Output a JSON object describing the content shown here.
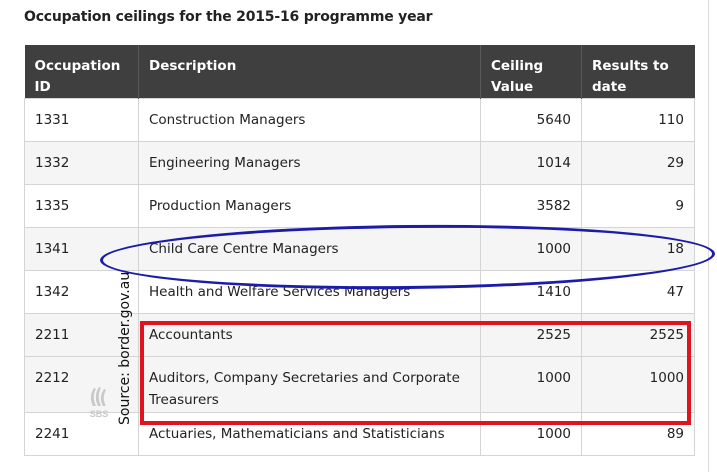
{
  "caption": "Occupation ceilings for the 2015-16 programme year",
  "table": {
    "headers": {
      "id_line1": "Occupation",
      "id_line2": "ID",
      "description": "Description",
      "ceiling_line1": "Ceiling",
      "ceiling_line2": "Value",
      "results_line1": "Results to",
      "results_line2": "date"
    },
    "rows": [
      {
        "id": "1331",
        "description": "Construction Managers",
        "ceiling": "5640",
        "results": "110"
      },
      {
        "id": "1332",
        "description": "Engineering Managers",
        "ceiling": "1014",
        "results": "29"
      },
      {
        "id": "1335",
        "description": "Production Managers",
        "ceiling": "3582",
        "results": "9"
      },
      {
        "id": "1341",
        "description": "Child Care Centre Managers",
        "ceiling": "1000",
        "results": "18"
      },
      {
        "id": "1342",
        "description": "Health and Welfare Services Managers",
        "ceiling": "1410",
        "results": "47"
      },
      {
        "id": "2211",
        "description": "Accountants",
        "ceiling": "2525",
        "results": "2525"
      },
      {
        "id": "2212",
        "description_line1": "Auditors, Company Secretaries and Corporate",
        "description_line2": "Treasurers",
        "ceiling": "1000",
        "results": "1000"
      },
      {
        "id": "2241",
        "description": "Actuaries, Mathematicians and Statisticians",
        "ceiling": "1000",
        "results": "89"
      }
    ]
  },
  "annotations": {
    "ellipse_color": "#1c1ca8",
    "rect_color": "#e0141e",
    "source_text": "Source: border.gov.au",
    "logo_icon": "sbs-logo-icon"
  }
}
